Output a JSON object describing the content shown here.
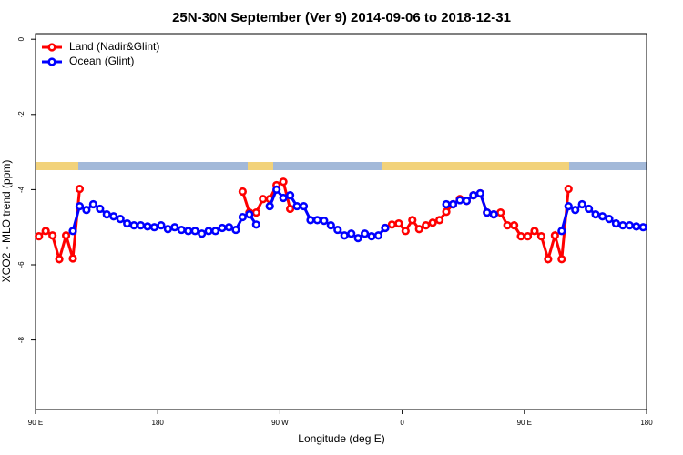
{
  "chart_data": {
    "type": "line",
    "title": "25N-30N September (Ver 9)   2014-09-06 to 2018-12-31",
    "x_label": "Longitude (deg E)",
    "y_label": "XCO2 - MLO trend (ppm)",
    "xlim": [
      90,
      540
    ],
    "ylim": [
      -9.85,
      0.15
    ],
    "xticks": [
      {
        "value": 90,
        "label": "90 E"
      },
      {
        "value": 180,
        "label": "180"
      },
      {
        "value": 270,
        "label": "90 W"
      },
      {
        "value": 360,
        "label": "0"
      },
      {
        "value": 450,
        "label": "90 E"
      },
      {
        "value": 540,
        "label": "180"
      }
    ],
    "yticks": [
      0,
      -2,
      -4,
      -6,
      -8
    ],
    "legend": "top-left",
    "x": [
      92.5,
      97.5,
      102.5,
      107.5,
      112.5,
      117.5,
      122.5,
      127.5,
      132.5,
      137.5,
      142.5,
      147.5,
      152.5,
      157.5,
      162.5,
      167.5,
      172.5,
      177.5,
      182.5,
      187.5,
      192.5,
      197.5,
      202.5,
      207.5,
      212.5,
      217.5,
      222.5,
      227.5,
      232.5,
      237.5,
      242.5,
      247.5,
      252.5,
      257.5,
      262.5,
      267.5,
      272.5,
      277.5,
      282.5,
      287.5,
      292.5,
      297.5,
      302.5,
      307.5,
      312.5,
      317.5,
      322.5,
      327.5,
      332.5,
      337.5,
      342.5,
      347.5,
      352.5,
      357.5,
      362.5,
      367.5,
      372.5,
      377.5,
      382.5,
      387.5,
      392.5,
      397.5,
      402.5,
      407.5,
      412.5,
      417.5,
      422.5,
      427.5,
      432.5,
      437.5,
      442.5,
      447.5,
      452.5,
      457.5,
      462.5,
      467.5,
      472.5,
      477.5,
      482.5,
      487.5,
      492.5,
      497.5,
      502.5,
      507.5,
      512.5,
      517.5,
      522.5,
      527.5,
      532.5,
      537.5
    ],
    "series": [
      {
        "name": "Land (Nadir&Glint)",
        "color": "#ff0000",
        "values": [
          -5.24,
          -5.1,
          -5.22,
          -5.85,
          -5.22,
          -5.83,
          -3.98,
          null,
          null,
          null,
          null,
          null,
          null,
          null,
          null,
          null,
          null,
          null,
          null,
          null,
          null,
          null,
          null,
          null,
          null,
          null,
          null,
          null,
          null,
          null,
          -4.05,
          -4.61,
          -4.61,
          -4.25,
          -4.25,
          -3.88,
          -3.79,
          -4.51,
          null,
          null,
          null,
          null,
          null,
          null,
          null,
          null,
          null,
          null,
          null,
          null,
          null,
          -5.02,
          -4.93,
          -4.9,
          -5.1,
          -4.81,
          -5.05,
          -4.95,
          -4.88,
          -4.81,
          -4.59,
          -4.39,
          -4.25,
          -4.3,
          -4.15,
          -4.1,
          -4.61,
          -4.66,
          -4.61,
          -4.95,
          -4.95,
          -5.24,
          -5.24,
          -5.1,
          -5.24,
          -5.85,
          -5.22,
          -5.85,
          -3.98,
          null,
          null,
          null,
          null,
          null,
          null,
          null,
          null,
          null,
          null,
          null
        ]
      },
      {
        "name": "Ocean (Glint)",
        "color": "#0000ff",
        "values": [
          null,
          null,
          null,
          null,
          null,
          -5.1,
          -4.44,
          -4.54,
          -4.39,
          -4.51,
          -4.66,
          -4.71,
          -4.78,
          -4.9,
          -4.95,
          -4.95,
          -4.98,
          -5.0,
          -4.95,
          -5.05,
          -5.0,
          -5.07,
          -5.1,
          -5.1,
          -5.17,
          -5.1,
          -5.1,
          -5.02,
          -5.0,
          -5.07,
          -4.73,
          -4.66,
          -4.93,
          null,
          -4.44,
          -4.0,
          -4.22,
          -4.15,
          -4.44,
          -4.44,
          -4.81,
          -4.81,
          -4.83,
          -4.95,
          -5.07,
          -5.22,
          -5.17,
          -5.29,
          -5.17,
          -5.24,
          -5.22,
          -5.02,
          null,
          null,
          null,
          null,
          null,
          null,
          null,
          null,
          -4.39,
          -4.39,
          -4.28,
          -4.3,
          -4.15,
          -4.1,
          -4.61,
          -4.66,
          null,
          null,
          null,
          null,
          null,
          null,
          null,
          null,
          null,
          -5.1,
          -4.44,
          -4.54,
          -4.39,
          -4.51,
          -4.66,
          -4.71,
          -4.78,
          -4.9,
          -4.95,
          -4.95,
          -4.98,
          -5.0
        ]
      }
    ]
  }
}
